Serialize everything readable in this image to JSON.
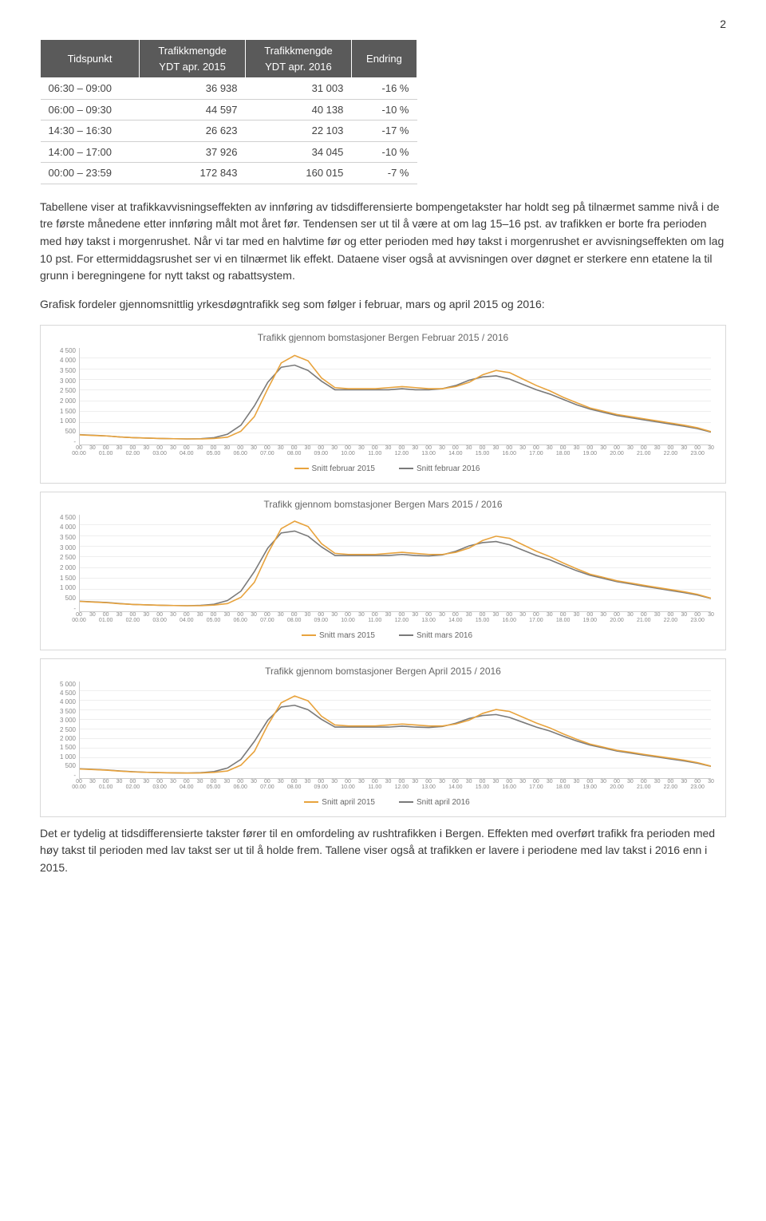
{
  "page_number": "2",
  "table": {
    "headers": [
      "Tidspunkt",
      "Trafikkmengde YDT apr. 2015",
      "Trafikkmengde YDT apr. 2016",
      "Endring"
    ],
    "rows": [
      [
        "06:30 – 09:00",
        "36 938",
        "31 003",
        "-16 %"
      ],
      [
        "06:00 – 09:30",
        "44 597",
        "40 138",
        "-10 %"
      ],
      [
        "14:30 – 16:30",
        "26 623",
        "22 103",
        "-17 %"
      ],
      [
        "14:00 – 17:00",
        "37 926",
        "34 045",
        "-10 %"
      ],
      [
        "00:00 – 23:59",
        "172 843",
        "160 015",
        "-7 %"
      ]
    ]
  },
  "para1": "Tabellene viser at trafikkavvisningseffekten av innføring av tidsdifferensierte bompengetakster har holdt seg på tilnærmet samme nivå i de tre første månedene etter innføring målt mot året før. Tendensen ser ut til å være at om lag 15–16 pst. av trafikken er borte fra perioden med høy takst i morgenrushet. Når vi tar med en halvtime før og etter perioden med høy takst i morgenrushet er avvisningseffekten om lag 10 pst. For ettermiddagsrushet ser vi en tilnærmet lik effekt. Dataene viser også at avvisningen over døgnet er sterkere enn etatene la til grunn i beregningene for nytt takst og rabattsystem.",
  "para2": "Grafisk fordeler gjennomsnittlig yrkesdøgntrafikk seg som følger i februar, mars og april 2015 og 2016:",
  "para3": "Det er tydelig at tidsdifferensierte takster fører til en omfordeling av rushtrafikken i Bergen. Effekten med overført trafikk fra perioden med høy takst til perioden med lav takst ser ut til å holde frem. Tallene viser også at trafikken er lavere i periodene med lav takst i 2016 enn i 2015.",
  "charts": [
    {
      "title": "Trafikk gjennom bomstasjoner Bergen Februar 2015 / 2016",
      "y_max": 4500,
      "y_step": 500,
      "y_labels": [
        "-",
        "500",
        "1 000",
        "1 500",
        "2 000",
        "2 500",
        "3 000",
        "3 500",
        "4 000",
        "4 500"
      ],
      "legend": [
        "Snitt februar 2015",
        "Snitt februar 2016"
      ],
      "colors": [
        "#e8a33d",
        "#7a7a7a"
      ],
      "series_2015": [
        450,
        420,
        400,
        350,
        320,
        300,
        280,
        270,
        260,
        260,
        280,
        340,
        620,
        1300,
        2600,
        3800,
        4150,
        3900,
        3100,
        2650,
        2600,
        2600,
        2600,
        2650,
        2700,
        2650,
        2600,
        2600,
        2700,
        2900,
        3250,
        3450,
        3350,
        3050,
        2750,
        2500,
        2200,
        1950,
        1700,
        1550,
        1400,
        1300,
        1200,
        1100,
        1000,
        900,
        780,
        600
      ],
      "series_2016": [
        460,
        430,
        400,
        350,
        320,
        300,
        280,
        270,
        260,
        270,
        320,
        480,
        900,
        1800,
        2900,
        3600,
        3700,
        3450,
        2950,
        2550,
        2550,
        2550,
        2550,
        2550,
        2600,
        2550,
        2550,
        2600,
        2750,
        3000,
        3150,
        3200,
        3050,
        2800,
        2550,
        2350,
        2100,
        1850,
        1650,
        1500,
        1350,
        1250,
        1150,
        1050,
        950,
        850,
        740,
        580
      ]
    },
    {
      "title": "Trafikk gjennom bomstasjoner Bergen Mars 2015 / 2016",
      "y_max": 4500,
      "y_step": 500,
      "y_labels": [
        "-",
        "500",
        "1 000",
        "1 500",
        "2 000",
        "2 500",
        "3 000",
        "3 500",
        "4 000",
        "4 500"
      ],
      "legend": [
        "Snitt mars 2015",
        "Snitt mars 2016"
      ],
      "colors": [
        "#e8a33d",
        "#7a7a7a"
      ],
      "series_2015": [
        460,
        430,
        400,
        350,
        320,
        300,
        280,
        270,
        260,
        260,
        290,
        360,
        650,
        1350,
        2700,
        3850,
        4200,
        3950,
        3150,
        2700,
        2650,
        2650,
        2650,
        2700,
        2750,
        2700,
        2650,
        2650,
        2750,
        2950,
        3300,
        3500,
        3400,
        3100,
        2800,
        2550,
        2250,
        1980,
        1730,
        1580,
        1420,
        1320,
        1210,
        1110,
        1010,
        910,
        790,
        610
      ],
      "series_2016": [
        470,
        440,
        410,
        360,
        320,
        300,
        280,
        270,
        260,
        275,
        330,
        500,
        940,
        1850,
        2950,
        3650,
        3740,
        3500,
        3000,
        2600,
        2600,
        2600,
        2600,
        2600,
        2650,
        2600,
        2580,
        2630,
        2800,
        3050,
        3200,
        3250,
        3100,
        2850,
        2600,
        2400,
        2140,
        1890,
        1680,
        1530,
        1380,
        1280,
        1170,
        1070,
        970,
        870,
        760,
        600
      ]
    },
    {
      "title": "Trafikk gjennom bomstasjoner Bergen April 2015 / 2016",
      "y_max": 5000,
      "y_step": 500,
      "y_labels": [
        "-",
        "500",
        "1 000",
        "1 500",
        "2 000",
        "2 500",
        "3 000",
        "3 500",
        "4 000",
        "4 500",
        "5 000"
      ],
      "legend": [
        "Snitt april 2015",
        "Snitt april 2016"
      ],
      "colors": [
        "#e8a33d",
        "#7a7a7a"
      ],
      "series_2015": [
        470,
        440,
        410,
        360,
        320,
        300,
        280,
        270,
        260,
        265,
        295,
        370,
        670,
        1380,
        2750,
        3900,
        4250,
        4000,
        3200,
        2750,
        2700,
        2700,
        2700,
        2750,
        2800,
        2750,
        2700,
        2700,
        2800,
        3000,
        3350,
        3550,
        3450,
        3150,
        2850,
        2600,
        2290,
        2010,
        1760,
        1600,
        1440,
        1340,
        1230,
        1130,
        1030,
        930,
        800,
        620
      ],
      "series_2016": [
        480,
        450,
        420,
        370,
        330,
        300,
        280,
        270,
        260,
        280,
        340,
        520,
        970,
        1900,
        3000,
        3680,
        3770,
        3540,
        3040,
        2640,
        2640,
        2640,
        2640,
        2640,
        2690,
        2640,
        2620,
        2670,
        2840,
        3090,
        3240,
        3290,
        3140,
        2890,
        2640,
        2440,
        2170,
        1920,
        1710,
        1560,
        1400,
        1300,
        1190,
        1090,
        990,
        890,
        770,
        610
      ]
    }
  ],
  "x_hours": [
    "00.00",
    "01.00",
    "02.00",
    "03.00",
    "04.00",
    "05.00",
    "06.00",
    "07.00",
    "08.00",
    "09.00",
    "10.00",
    "11.00",
    "12.00",
    "13.00",
    "14.00",
    "15.00",
    "16.00",
    "17.00",
    "18.00",
    "19.00",
    "20.00",
    "21.00",
    "22.00",
    "23.00"
  ],
  "x_minutes": [
    "00",
    "30"
  ]
}
